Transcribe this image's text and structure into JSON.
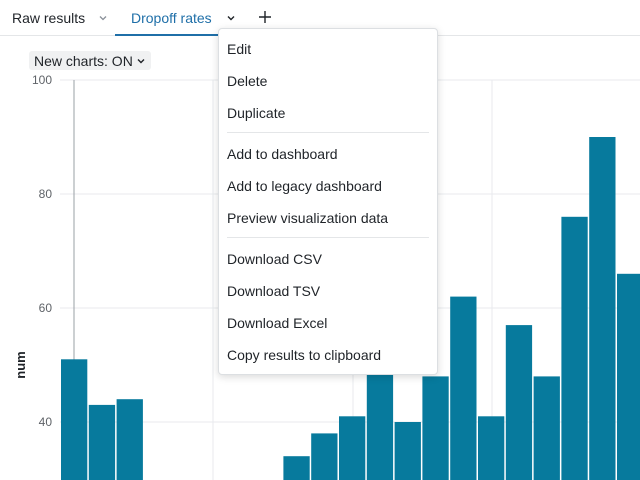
{
  "tabs": [
    {
      "label": "Raw results"
    },
    {
      "label": "Dropoff rates",
      "active": true
    }
  ],
  "toolbar": {
    "new_charts_label": "New charts: ON"
  },
  "menu": {
    "groups": [
      [
        "Edit",
        "Delete",
        "Duplicate"
      ],
      [
        "Add to dashboard",
        "Add to legacy dashboard",
        "Preview visualization data"
      ],
      [
        "Download CSV",
        "Download TSV",
        "Download Excel",
        "Copy results to clipboard"
      ]
    ]
  },
  "colors": {
    "accent": "#1f6fa8",
    "bar": "#077a9d"
  },
  "chart_data": {
    "type": "bar",
    "ylabel": "num",
    "yticks": [
      "100",
      "80",
      "60",
      "40"
    ],
    "ylim_visible": [
      30,
      100
    ],
    "values": [
      51,
      43,
      44,
      null,
      null,
      null,
      null,
      null,
      34,
      38,
      41,
      49,
      40,
      48,
      62,
      41,
      57,
      48,
      76,
      90,
      66
    ]
  }
}
